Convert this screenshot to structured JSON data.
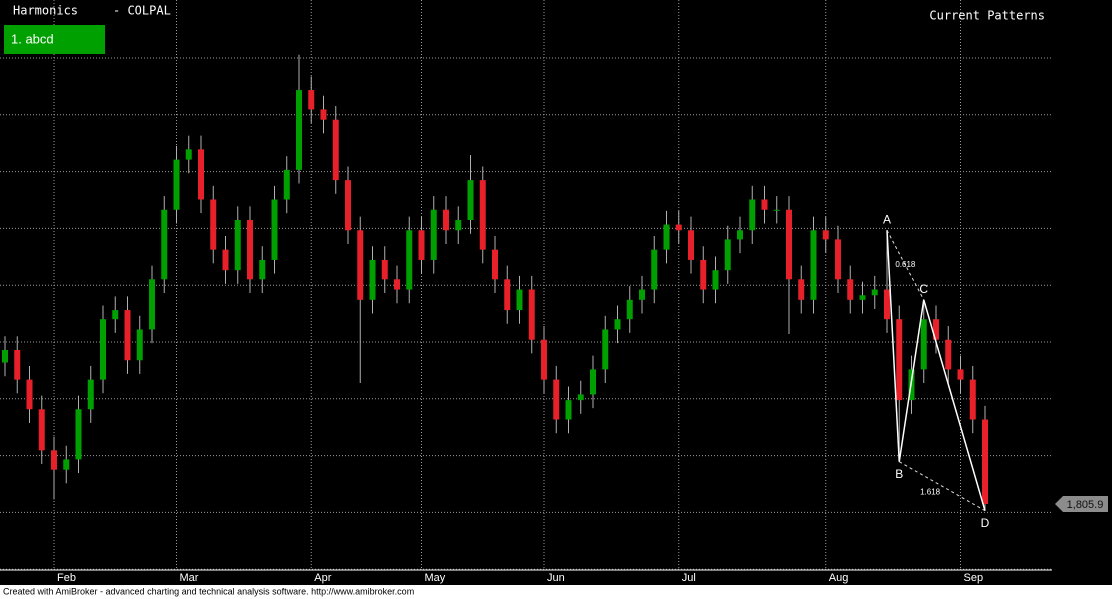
{
  "chart_data": {
    "type": "candlestick",
    "title": "Harmonics",
    "subtitle": "- COLPAL",
    "pattern_button": "1. abcd",
    "annotation": "Current Patterns",
    "categories": [
      null,
      null,
      null,
      null,
      "Feb",
      null,
      null,
      null,
      null,
      null,
      null,
      null,
      null,
      null,
      "Mar",
      null,
      null,
      null,
      null,
      null,
      null,
      null,
      null,
      null,
      null,
      "Apr",
      null,
      null,
      null,
      null,
      null,
      null,
      null,
      null,
      "May",
      null,
      null,
      null,
      null,
      null,
      null,
      null,
      null,
      null,
      "Jun",
      null,
      null,
      null,
      null,
      null,
      null,
      null,
      null,
      null,
      null,
      "Jul",
      null,
      null,
      null,
      null,
      null,
      null,
      null,
      null,
      null,
      null,
      null,
      "Aug",
      null,
      null,
      null,
      null,
      null,
      null,
      null,
      null,
      null,
      null,
      "Sep",
      null,
      null
    ],
    "open": [
      1930,
      1941,
      1915,
      1889,
      1853,
      1836,
      1845,
      1889,
      1915,
      1968,
      1976,
      1932,
      1959,
      2003,
      2064,
      2108,
      2117,
      2073,
      2029,
      2011,
      2055,
      2003,
      2020,
      2073,
      2099,
      2169,
      2152,
      2143,
      2090,
      2046,
      1985,
      2020,
      2003,
      1994,
      2046,
      2020,
      2064,
      2046,
      2055,
      2090,
      2029,
      2003,
      1976,
      1994,
      1950,
      1915,
      1880,
      1897,
      1902,
      1924,
      1959,
      1968,
      1985,
      1994,
      2029,
      2051,
      2046,
      2020,
      1994,
      2011,
      2038,
      2046,
      2073,
      2064,
      2064,
      2003,
      1985,
      2046,
      2038,
      2003,
      1985,
      1989,
      1994,
      1968,
      1897,
      1924,
      1968,
      1950,
      1924,
      1915,
      1880
    ],
    "high": [
      1953,
      1953,
      1927,
      1901,
      1865,
      1857,
      1901,
      1927,
      1980,
      1988,
      1988,
      1971,
      2015,
      2076,
      2120,
      2129,
      2129,
      2085,
      2041,
      2067,
      2067,
      2032,
      2085,
      2111,
      2200,
      2181,
      2164,
      2155,
      2102,
      2058,
      2032,
      2032,
      2015,
      2058,
      2058,
      2076,
      2076,
      2067,
      2112,
      2102,
      2041,
      2015,
      2006,
      2006,
      1962,
      1927,
      1909,
      1914,
      1936,
      1971,
      1980,
      1997,
      2006,
      2041,
      2063,
      2063,
      2058,
      2032,
      2023,
      2050,
      2058,
      2085,
      2085,
      2076,
      2076,
      2015,
      2058,
      2058,
      2050,
      2015,
      2001,
      2006,
      2046,
      1980,
      1936,
      1985,
      1980,
      1962,
      1936,
      1927,
      1892
    ],
    "low": [
      1918,
      1903,
      1877,
      1841,
      1810,
      1824,
      1833,
      1877,
      1903,
      1956,
      1920,
      1920,
      1947,
      1991,
      2052,
      2096,
      2061,
      2017,
      1999,
      1999,
      1991,
      1991,
      2008,
      2061,
      2087,
      2140,
      2131,
      2078,
      2034,
      1912,
      1973,
      1991,
      1982,
      1982,
      2008,
      2008,
      2034,
      2034,
      2043,
      2017,
      1991,
      1964,
      1964,
      1938,
      1903,
      1868,
      1868,
      1885,
      1890,
      1912,
      1947,
      1956,
      1973,
      1982,
      2017,
      2034,
      2008,
      1982,
      1982,
      1999,
      2026,
      2034,
      2052,
      2052,
      1955,
      1973,
      1973,
      2026,
      1991,
      1973,
      1973,
      1977,
      1956,
      1843,
      1885,
      1912,
      1938,
      1912,
      1903,
      1868,
      1800
    ],
    "close": [
      1941,
      1915,
      1889,
      1853,
      1836,
      1845,
      1889,
      1915,
      1968,
      1976,
      1932,
      1959,
      2003,
      2064,
      2108,
      2117,
      2073,
      2029,
      2011,
      2055,
      2003,
      2020,
      2073,
      2099,
      2169,
      2152,
      2143,
      2090,
      2046,
      1985,
      2020,
      2003,
      1994,
      2046,
      2020,
      2064,
      2046,
      2055,
      2090,
      2029,
      2003,
      1976,
      1994,
      1950,
      1915,
      1880,
      1897,
      1902,
      1924,
      1959,
      1968,
      1985,
      1994,
      2029,
      2051,
      2046,
      2020,
      1994,
      2011,
      2038,
      2046,
      2073,
      2064,
      2064,
      2003,
      1985,
      2046,
      2038,
      2003,
      1985,
      1989,
      1994,
      1968,
      1897,
      1924,
      1968,
      1950,
      1924,
      1915,
      1880,
      1805.9
    ],
    "up_color": "#00a000",
    "down_color": "#e8202a",
    "ylim": [
      1748,
      2248
    ],
    "grid": true,
    "last_price": {
      "value": 1805.9,
      "label": "1,805.9"
    },
    "pattern": {
      "points": [
        {
          "label": "A",
          "index": 72,
          "price": 2046
        },
        {
          "label": "B",
          "index": 73,
          "price": 1843
        },
        {
          "label": "C",
          "index": 75,
          "price": 1985
        },
        {
          "label": "D",
          "index": 80,
          "price": 1800
        }
      ],
      "ratios": [
        0.618,
        1.618
      ]
    }
  },
  "footer": "Created with AmiBroker - advanced charting and technical analysis software. http://www.amibroker.com"
}
